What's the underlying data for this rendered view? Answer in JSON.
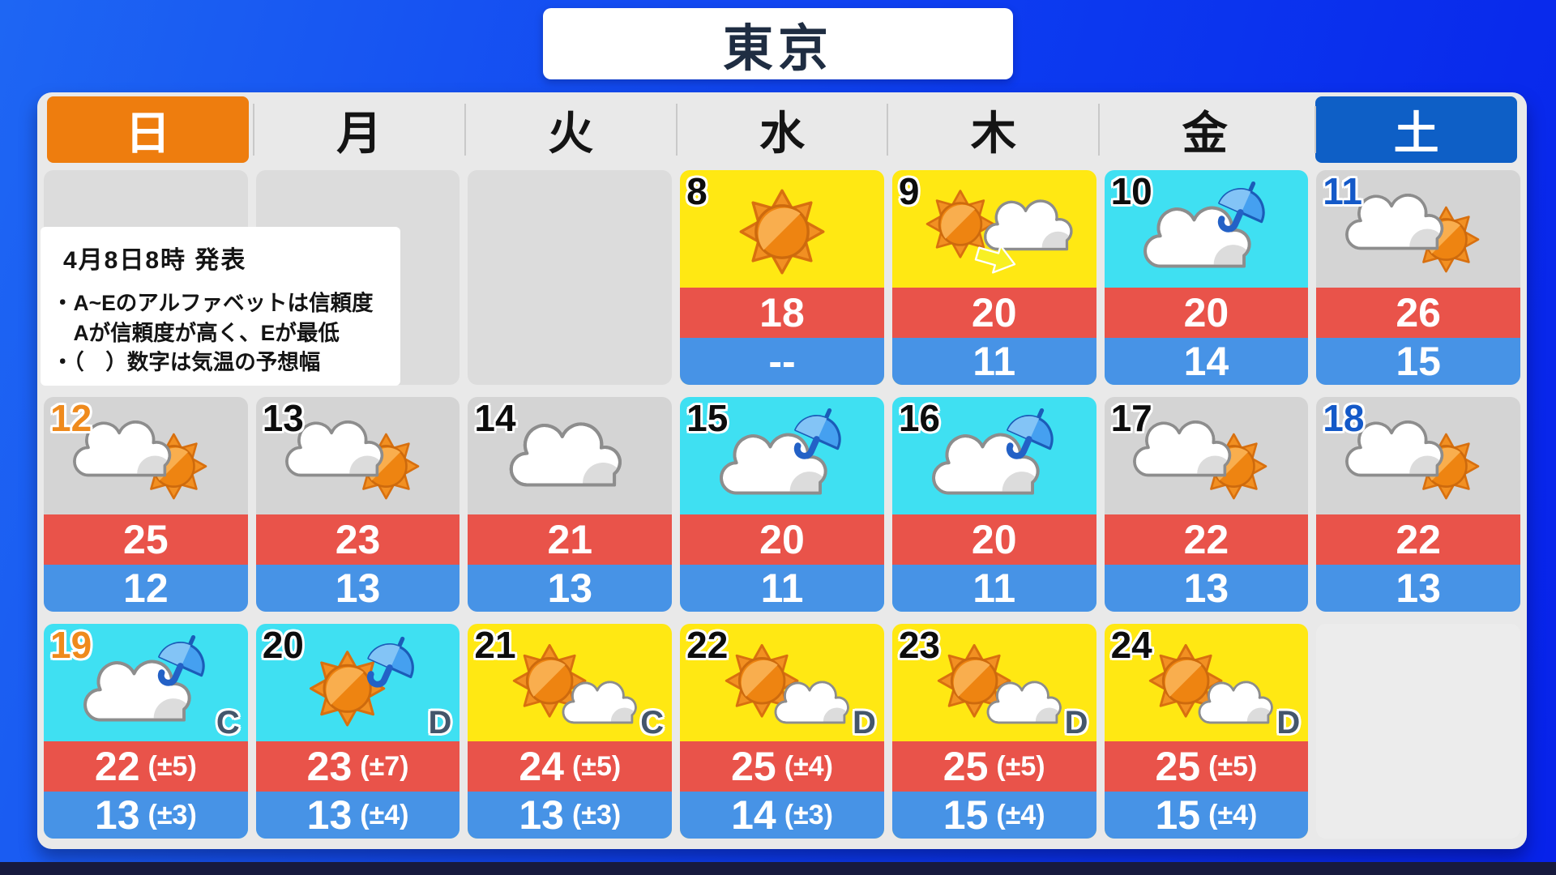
{
  "title": "東京",
  "weekdays": [
    {
      "label": "日",
      "style": "sunday"
    },
    {
      "label": "月",
      "style": "weekday"
    },
    {
      "label": "火",
      "style": "weekday"
    },
    {
      "label": "水",
      "style": "weekday"
    },
    {
      "label": "木",
      "style": "weekday"
    },
    {
      "label": "金",
      "style": "weekday"
    },
    {
      "label": "土",
      "style": "saturday"
    }
  ],
  "announcement": {
    "issued": "4月8日8時 発表",
    "notes": [
      "・A~Eのアルファベットは信頼度",
      "　Aが信頼度が高く、Eが最低",
      "・（　）数字は気温の予想幅"
    ]
  },
  "colors": {
    "sky_sunny": "#ffe813",
    "sky_rain": "#3fe0f2",
    "sky_cloudy": "#d4d4d4",
    "band_high": "#e9534a",
    "band_low": "#4793e6",
    "header_sunday": "#ee7d0e",
    "header_saturday": "#0e5fc6",
    "date_sunday": "#ef8a1c",
    "date_saturday": "#1459c8",
    "panel": "#e9e9e9",
    "background_top": "#1e66f3",
    "background_bottom": "#0722ea",
    "bottom_bar": "#171a3e",
    "title_text": "#1f2d42",
    "reliability_text": "#44566b"
  },
  "calendar": {
    "rows": [
      [
        null,
        null,
        null,
        {
          "date": "8",
          "sky": "sunny",
          "icon": "sun",
          "high": "18",
          "low": "--"
        },
        {
          "date": "9",
          "sky": "sunny",
          "icon": "sun-then-cloud",
          "high": "20",
          "low": "11"
        },
        {
          "date": "10",
          "sky": "rain",
          "icon": "cloud-umbrella",
          "high": "20",
          "low": "14"
        },
        {
          "date": "11",
          "sky": "cloudy",
          "icon": "cloud-sun",
          "high": "26",
          "low": "15",
          "date_style": "saturday"
        }
      ],
      [
        {
          "date": "12",
          "sky": "cloudy",
          "icon": "cloud-sun",
          "high": "25",
          "low": "12",
          "date_style": "sunday"
        },
        {
          "date": "13",
          "sky": "cloudy",
          "icon": "cloud-sun",
          "high": "23",
          "low": "13"
        },
        {
          "date": "14",
          "sky": "cloudy",
          "icon": "cloud",
          "high": "21",
          "low": "13"
        },
        {
          "date": "15",
          "sky": "rain",
          "icon": "cloud-umbrella",
          "high": "20",
          "low": "11"
        },
        {
          "date": "16",
          "sky": "rain",
          "icon": "cloud-umbrella",
          "high": "20",
          "low": "11"
        },
        {
          "date": "17",
          "sky": "cloudy",
          "icon": "cloud-sun",
          "high": "22",
          "low": "13"
        },
        {
          "date": "18",
          "sky": "cloudy",
          "icon": "cloud-sun",
          "high": "22",
          "low": "13",
          "date_style": "saturday"
        }
      ],
      [
        {
          "date": "19",
          "sky": "rain",
          "icon": "cloud-umbrella",
          "high": "22",
          "high_range": "(±5)",
          "low": "13",
          "low_range": "(±3)",
          "reliability": "C",
          "date_style": "sunday"
        },
        {
          "date": "20",
          "sky": "rain",
          "icon": "sun-umbrella",
          "high": "23",
          "high_range": "(±7)",
          "low": "13",
          "low_range": "(±4)",
          "reliability": "D"
        },
        {
          "date": "21",
          "sky": "sunny",
          "icon": "sun-cloud",
          "high": "24",
          "high_range": "(±5)",
          "low": "13",
          "low_range": "(±3)",
          "reliability": "C"
        },
        {
          "date": "22",
          "sky": "sunny",
          "icon": "sun-cloud",
          "high": "25",
          "high_range": "(±4)",
          "low": "14",
          "low_range": "(±3)",
          "reliability": "D"
        },
        {
          "date": "23",
          "sky": "sunny",
          "icon": "sun-cloud",
          "high": "25",
          "high_range": "(±5)",
          "low": "15",
          "low_range": "(±4)",
          "reliability": "D"
        },
        {
          "date": "24",
          "sky": "sunny",
          "icon": "sun-cloud",
          "high": "25",
          "high_range": "(±5)",
          "low": "15",
          "low_range": "(±4)",
          "reliability": "D"
        },
        null
      ]
    ]
  },
  "chart_data": {
    "type": "table",
    "title": "東京",
    "issued": "4月8日8時 発表",
    "columns": [
      "日",
      "月",
      "火",
      "水",
      "木",
      "金",
      "土"
    ],
    "days": [
      {
        "date": 8,
        "weekday": "水",
        "icon": "sun",
        "high": 18,
        "low": null
      },
      {
        "date": 9,
        "weekday": "木",
        "icon": "sun-then-cloud",
        "high": 20,
        "low": 11
      },
      {
        "date": 10,
        "weekday": "金",
        "icon": "cloud-umbrella",
        "high": 20,
        "low": 14
      },
      {
        "date": 11,
        "weekday": "土",
        "icon": "cloud-sun",
        "high": 26,
        "low": 15
      },
      {
        "date": 12,
        "weekday": "日",
        "icon": "cloud-sun",
        "high": 25,
        "low": 12
      },
      {
        "date": 13,
        "weekday": "月",
        "icon": "cloud-sun",
        "high": 23,
        "low": 13
      },
      {
        "date": 14,
        "weekday": "火",
        "icon": "cloud",
        "high": 21,
        "low": 13
      },
      {
        "date": 15,
        "weekday": "水",
        "icon": "cloud-umbrella",
        "high": 20,
        "low": 11
      },
      {
        "date": 16,
        "weekday": "木",
        "icon": "cloud-umbrella",
        "high": 20,
        "low": 11
      },
      {
        "date": 17,
        "weekday": "金",
        "icon": "cloud-sun",
        "high": 22,
        "low": 13
      },
      {
        "date": 18,
        "weekday": "土",
        "icon": "cloud-sun",
        "high": 22,
        "low": 13
      },
      {
        "date": 19,
        "weekday": "日",
        "icon": "cloud-umbrella",
        "high": 22,
        "high_range": "±5",
        "low": 13,
        "low_range": "±3",
        "reliability": "C"
      },
      {
        "date": 20,
        "weekday": "月",
        "icon": "sun-umbrella",
        "high": 23,
        "high_range": "±7",
        "low": 13,
        "low_range": "±4",
        "reliability": "D"
      },
      {
        "date": 21,
        "weekday": "火",
        "icon": "sun-cloud",
        "high": 24,
        "high_range": "±5",
        "low": 13,
        "low_range": "±3",
        "reliability": "C"
      },
      {
        "date": 22,
        "weekday": "水",
        "icon": "sun-cloud",
        "high": 25,
        "high_range": "±4",
        "low": 14,
        "low_range": "±3",
        "reliability": "D"
      },
      {
        "date": 23,
        "weekday": "木",
        "icon": "sun-cloud",
        "high": 25,
        "high_range": "±5",
        "low": 15,
        "low_range": "±4",
        "reliability": "D"
      },
      {
        "date": 24,
        "weekday": "金",
        "icon": "sun-cloud",
        "high": 25,
        "high_range": "±5",
        "low": 15,
        "low_range": "±4",
        "reliability": "D"
      }
    ]
  }
}
